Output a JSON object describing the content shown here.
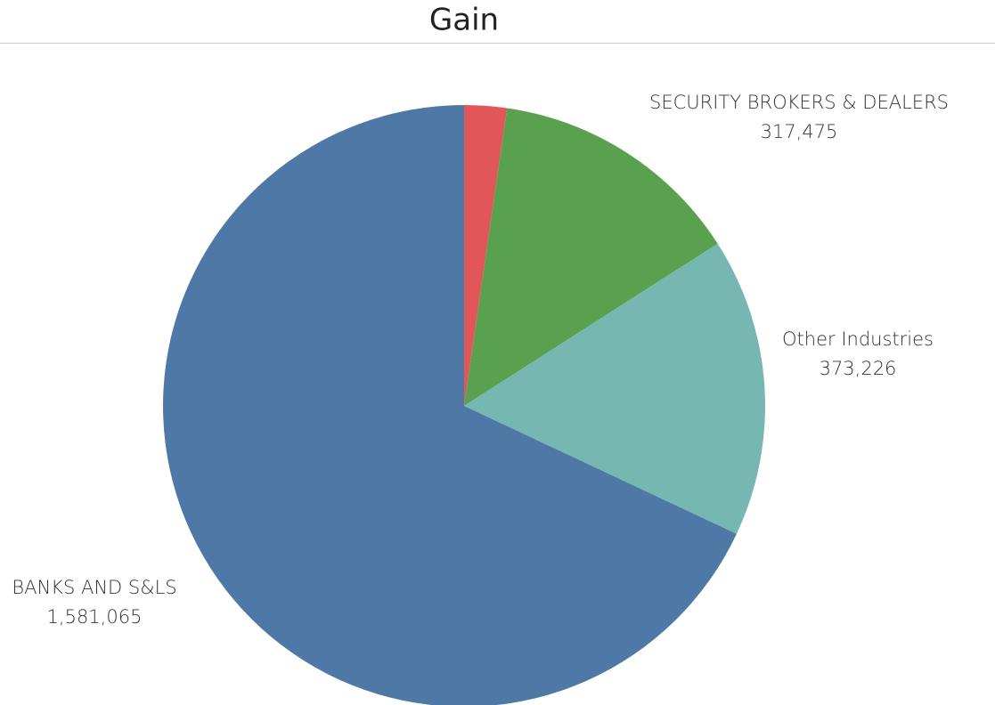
{
  "chart_data": {
    "type": "pie",
    "title": "Gain",
    "categories": [
      null,
      "SECURITY BROKERS & DEALERS",
      "Other Industries",
      "BANKS AND S&LS"
    ],
    "values": [
      53000,
      317475,
      373226,
      1581065
    ],
    "value_labels": [
      null,
      "317,475",
      "373,226",
      "1,581,065"
    ],
    "colors": [
      "#e15759",
      "#59a14f",
      "#76b7b2",
      "#4e79a7"
    ]
  }
}
